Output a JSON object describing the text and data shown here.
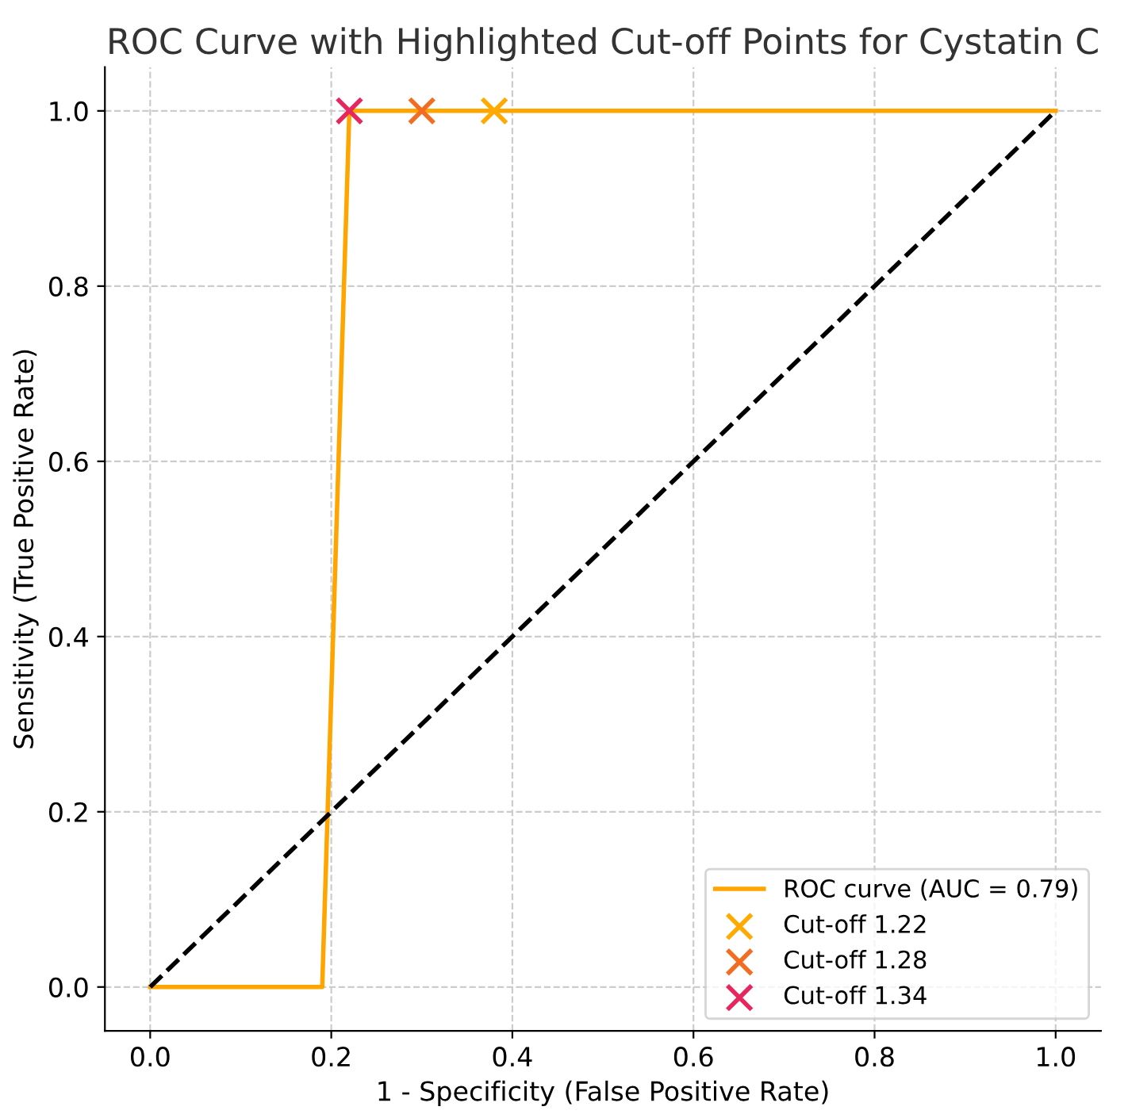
{
  "chart_data": {
    "type": "line",
    "title": "ROC Curve with Highlighted Cut-off Points for Cystatin C",
    "xlabel": "1 - Specificity (False Positive Rate)",
    "ylabel": "Sensitivity (True Positive Rate)",
    "series": [
      {
        "name": "ROC curve (AUC = 0.79)",
        "color": "#ffa500",
        "x": [
          0.0,
          0.19,
          0.22,
          1.0
        ],
        "values": [
          0.0,
          0.0,
          1.0,
          1.0
        ],
        "line_style": "solid",
        "marker": "none"
      },
      {
        "color": "#000000",
        "x": [
          0.0,
          1.0
        ],
        "values": [
          0.0,
          1.0
        ],
        "line_style": "dashed",
        "marker": "none"
      },
      {
        "name": "Cut-off 1.22",
        "type": "scatter",
        "color": "#ffaa00",
        "x": [
          0.38
        ],
        "values": [
          1.0
        ],
        "marker": "cross"
      },
      {
        "name": "Cut-off 1.28",
        "type": "scatter",
        "color": "#f26d21",
        "x": [
          0.3
        ],
        "values": [
          1.0
        ],
        "marker": "cross"
      },
      {
        "name": "Cut-off 1.34",
        "type": "scatter",
        "color": "#e8265e",
        "x": [
          0.22
        ],
        "values": [
          1.0
        ],
        "marker": "cross"
      }
    ],
    "xlim": [
      -0.05,
      1.05
    ],
    "ylim": [
      -0.05,
      1.05
    ],
    "xticks": [
      {
        "value": 0,
        "label": "0.0"
      },
      0.2,
      0.4,
      0.6,
      0.8,
      {
        "value": 1,
        "label": "1.0"
      }
    ],
    "yticks": [
      {
        "value": 0,
        "label": "0.0"
      },
      0.2,
      0.4,
      0.6,
      0.8,
      {
        "value": 1,
        "label": "1.0"
      }
    ],
    "grid": true,
    "legend": "bottom right"
  }
}
